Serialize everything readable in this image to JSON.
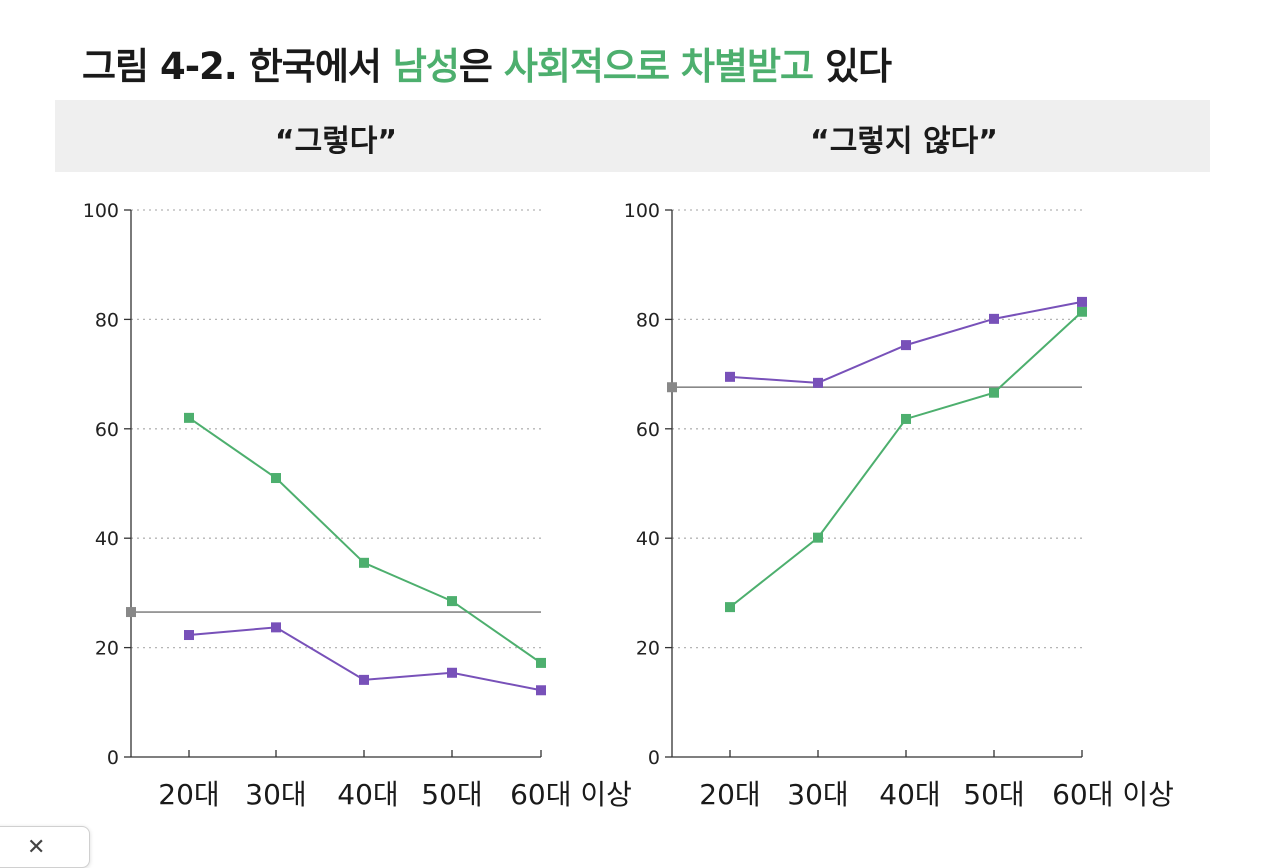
{
  "title": {
    "prefix": "그림 4-2. 한국에서 ",
    "highlight1": "남성",
    "mid": "은 ",
    "highlight2": "사회적으로 차별받고",
    "suffix": " 있다"
  },
  "colors": {
    "accent_green": "#4daf6e",
    "green_series": "#4daf6e",
    "purple_series": "#7851b9",
    "reference_line": "#888888",
    "header_band": "#efefef"
  },
  "close_icon": "close-icon",
  "chart_data": [
    {
      "type": "line",
      "title": "“그렇다”",
      "categories": [
        "20대",
        "30대",
        "40대",
        "50대",
        "60대 이상"
      ],
      "ylim": [
        0,
        100
      ],
      "yticks": [
        0,
        20,
        40,
        60,
        80,
        100
      ],
      "grid": true,
      "series": [
        {
          "color": "#4daf6e",
          "values": [
            62,
            51,
            35.5,
            28.5,
            17.2
          ]
        },
        {
          "color": "#7851b9",
          "values": [
            22.3,
            23.7,
            14.1,
            15.4,
            12.2
          ]
        }
      ],
      "reference_line": 26.5
    },
    {
      "type": "line",
      "title": "“그렇지 않다”",
      "categories": [
        "20대",
        "30대",
        "40대",
        "50대",
        "60대 이상"
      ],
      "ylim": [
        0,
        100
      ],
      "yticks": [
        0,
        20,
        40,
        60,
        80,
        100
      ],
      "grid": true,
      "series": [
        {
          "color": "#4daf6e",
          "values": [
            27.4,
            40.1,
            61.8,
            66.6,
            81.4
          ]
        },
        {
          "color": "#7851b9",
          "values": [
            69.5,
            68.4,
            75.3,
            80.1,
            83.2
          ]
        }
      ],
      "reference_line": 67.6
    }
  ]
}
